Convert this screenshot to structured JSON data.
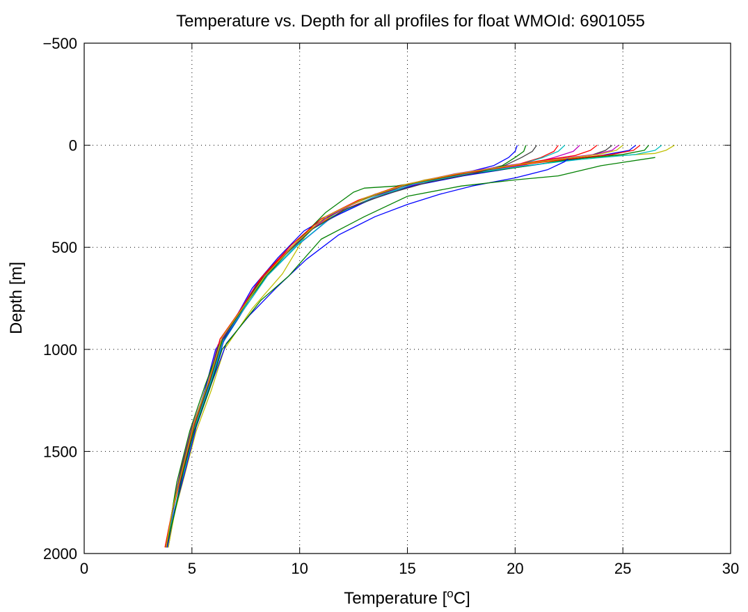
{
  "chart_data": {
    "type": "line",
    "title": "Temperature vs. Depth for all profiles for float WMOId: 6901055",
    "xlabel": "Temperature [",
    "xlabel_sup": "o",
    "xlabel_suffix": "C]",
    "ylabel": "Depth [m]",
    "xlim": [
      0,
      30
    ],
    "ylim": [
      -500,
      2000
    ],
    "y_reversed": true,
    "grid": true,
    "xticks": [
      0,
      5,
      10,
      15,
      20,
      25,
      30
    ],
    "yticks": [
      -500,
      0,
      500,
      1000,
      1500,
      2000
    ],
    "xtick_labels": [
      "0",
      "5",
      "10",
      "15",
      "20",
      "25",
      "30"
    ],
    "ytick_labels": [
      "−500",
      "0",
      "500",
      "1000",
      "1500",
      "2000"
    ],
    "series": [
      {
        "color": "#0000ff",
        "x": [
          20.1,
          20.0,
          19.7,
          19.0,
          17.5,
          15.5,
          13.5,
          11.8,
          10.2,
          9.0,
          7.8,
          7.0,
          6.1,
          5.6,
          5.0,
          4.5,
          4.1,
          3.8
        ],
        "y": [
          0,
          30,
          60,
          100,
          140,
          180,
          240,
          320,
          420,
          550,
          700,
          850,
          1000,
          1200,
          1400,
          1600,
          1800,
          1970
        ]
      },
      {
        "color": "#008000",
        "x": [
          20.5,
          20.4,
          20.0,
          19.4,
          17.8,
          15.8,
          13.8,
          12.0,
          10.4,
          9.2,
          7.9,
          7.1,
          6.2,
          5.7,
          5.1,
          4.6,
          4.2,
          3.85
        ],
        "y": [
          0,
          30,
          60,
          100,
          140,
          180,
          240,
          320,
          420,
          550,
          700,
          850,
          1000,
          1200,
          1400,
          1600,
          1800,
          1970
        ]
      },
      {
        "color": "#ff0000",
        "x": [
          22.0,
          21.8,
          21.2,
          20.1,
          18.3,
          16.0,
          14.0,
          12.2,
          10.5,
          9.3,
          8.0,
          7.2,
          6.3,
          5.7,
          5.1,
          4.6,
          4.2,
          3.9
        ],
        "y": [
          0,
          30,
          60,
          95,
          130,
          175,
          230,
          310,
          410,
          540,
          690,
          840,
          990,
          1190,
          1390,
          1590,
          1790,
          1970
        ]
      },
      {
        "color": "#00bfbf",
        "x": [
          22.3,
          22.0,
          21.3,
          20.2,
          18.5,
          16.2,
          14.2,
          12.3,
          10.6,
          9.4,
          8.0,
          7.2,
          6.3,
          5.8,
          5.1,
          4.6,
          4.2,
          3.9
        ],
        "y": [
          0,
          30,
          60,
          95,
          130,
          175,
          230,
          310,
          410,
          540,
          690,
          840,
          990,
          1190,
          1390,
          1590,
          1790,
          1970
        ]
      },
      {
        "color": "#bf00bf",
        "x": [
          23.0,
          22.7,
          21.8,
          20.5,
          18.6,
          16.0,
          14.0,
          12.5,
          10.7,
          9.3,
          8.0,
          7.1,
          6.2,
          5.7,
          5.0,
          4.5,
          4.1,
          3.8
        ],
        "y": [
          0,
          30,
          60,
          95,
          130,
          175,
          230,
          300,
          400,
          530,
          680,
          830,
          980,
          1180,
          1380,
          1580,
          1780,
          1970
        ]
      },
      {
        "color": "#bfbf00",
        "x": [
          27.4,
          27.0,
          26.5,
          23.5,
          20.5,
          18.0,
          15.8,
          13.8,
          12.0,
          10.4,
          9.2,
          7.8,
          6.5,
          5.9,
          5.2,
          4.7,
          4.2,
          3.9
        ],
        "y": [
          0,
          25,
          40,
          60,
          90,
          130,
          170,
          230,
          310,
          420,
          630,
          800,
          1000,
          1200,
          1400,
          1600,
          1800,
          1970
        ]
      },
      {
        "color": "#404040",
        "x": [
          24.5,
          24.2,
          23.5,
          21.5,
          19.5,
          17.0,
          14.8,
          12.8,
          11.0,
          9.6,
          8.2,
          7.3,
          6.4,
          5.8,
          5.1,
          4.6,
          4.1,
          3.8
        ],
        "y": [
          0,
          25,
          50,
          75,
          105,
          150,
          200,
          270,
          370,
          500,
          660,
          810,
          960,
          1170,
          1380,
          1580,
          1780,
          1970
        ]
      },
      {
        "color": "#0000ff",
        "x": [
          25.6,
          25.3,
          24.0,
          22.0,
          20.0,
          17.6,
          15.2,
          13.2,
          11.4,
          9.9,
          8.5,
          7.5,
          6.5,
          5.9,
          5.2,
          4.6,
          4.2,
          3.8
        ],
        "y": [
          0,
          25,
          50,
          80,
          110,
          150,
          200,
          270,
          360,
          490,
          640,
          790,
          950,
          1160,
          1370,
          1580,
          1790,
          1970
        ]
      },
      {
        "color": "#008000",
        "x": [
          26.2,
          26.0,
          25.0,
          22.5,
          20.0,
          17.2,
          14.5,
          13.0,
          12.5,
          11.2,
          9.8,
          8.4,
          7.2,
          6.3,
          5.6,
          4.9,
          4.3,
          3.8
        ],
        "y": [
          0,
          25,
          45,
          70,
          110,
          150,
          200,
          210,
          230,
          330,
          480,
          650,
          820,
          980,
          1180,
          1400,
          1650,
          1970
        ]
      },
      {
        "color": "#ff0000",
        "x": [
          25.8,
          25.5,
          24.5,
          22.2,
          20.0,
          17.5,
          15.0,
          13.0,
          11.2,
          9.8,
          8.3,
          7.4,
          6.4,
          5.8,
          5.1,
          4.6,
          4.1,
          3.75
        ],
        "y": [
          0,
          25,
          45,
          70,
          100,
          140,
          190,
          260,
          350,
          480,
          640,
          790,
          940,
          1150,
          1360,
          1570,
          1780,
          1970
        ]
      },
      {
        "color": "#00bfbf",
        "x": [
          26.8,
          26.5,
          25.6,
          23.0,
          20.5,
          17.8,
          15.3,
          13.3,
          11.5,
          10.0,
          8.5,
          7.5,
          6.5,
          5.9,
          5.2,
          4.7,
          4.2,
          3.8
        ],
        "y": [
          0,
          25,
          45,
          70,
          100,
          140,
          190,
          260,
          350,
          480,
          640,
          790,
          940,
          1150,
          1360,
          1570,
          1780,
          1970
        ]
      },
      {
        "color": "#bf00bf",
        "x": [
          24.8,
          24.5,
          23.7,
          21.7,
          19.6,
          17.2,
          15.0,
          13.0,
          11.3,
          9.8,
          8.4,
          7.4,
          6.4,
          5.8,
          5.1,
          4.6,
          4.1,
          3.8
        ],
        "y": [
          0,
          25,
          45,
          70,
          100,
          140,
          190,
          260,
          350,
          480,
          640,
          790,
          940,
          1150,
          1360,
          1570,
          1780,
          1970
        ]
      },
      {
        "color": "#0000ff",
        "x": [
          22.5,
          22.3,
          21.5,
          20.0,
          18.0,
          16.5,
          15.0,
          13.5,
          11.8,
          10.3,
          8.9,
          7.7,
          6.6,
          5.9,
          5.2,
          4.7,
          4.2,
          3.85
        ],
        "y": [
          60,
          80,
          120,
          160,
          200,
          240,
          290,
          350,
          440,
          560,
          700,
          830,
          970,
          1170,
          1380,
          1590,
          1790,
          1970
        ]
      },
      {
        "color": "#008000",
        "x": [
          26.5,
          24.0,
          22.0,
          20.0,
          17.5,
          15.0,
          13.0,
          11.0,
          9.5,
          8.2,
          7.3,
          6.4,
          5.8,
          5.1,
          4.6,
          4.2,
          3.8
        ],
        "y": [
          60,
          100,
          150,
          170,
          200,
          250,
          350,
          460,
          640,
          760,
          880,
          1000,
          1200,
          1400,
          1600,
          1800,
          1970
        ]
      },
      {
        "color": "#ff0000",
        "x": [
          23.8,
          23.5,
          22.8,
          21.2,
          19.2,
          16.8,
          14.6,
          12.7,
          11.0,
          9.6,
          8.2,
          7.3,
          6.3,
          5.8,
          5.1,
          4.6,
          4.1,
          3.8
        ],
        "y": [
          0,
          25,
          50,
          75,
          110,
          150,
          200,
          270,
          360,
          490,
          650,
          800,
          950,
          1160,
          1370,
          1580,
          1790,
          1970
        ]
      },
      {
        "color": "#404040",
        "x": [
          21.0,
          20.8,
          20.3,
          19.5,
          18.0,
          16.0,
          14.0,
          12.2,
          10.6,
          9.3,
          8.0,
          7.1,
          6.2,
          5.7,
          5.0,
          4.5,
          4.1,
          3.8
        ],
        "y": [
          0,
          30,
          60,
          100,
          140,
          180,
          240,
          310,
          410,
          540,
          690,
          840,
          990,
          1190,
          1390,
          1590,
          1790,
          1970
        ]
      },
      {
        "color": "#bfbf00",
        "x": [
          25.0,
          24.7,
          23.9,
          21.9,
          19.8,
          17.3,
          15.0,
          13.0,
          11.2,
          9.8,
          8.4,
          7.4,
          6.4,
          5.8,
          5.1,
          4.6,
          4.1,
          3.8
        ],
        "y": [
          0,
          25,
          45,
          70,
          100,
          140,
          190,
          260,
          350,
          480,
          640,
          790,
          940,
          1150,
          1360,
          1570,
          1780,
          1970
        ]
      }
    ]
  }
}
